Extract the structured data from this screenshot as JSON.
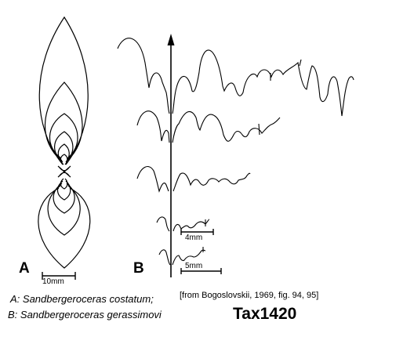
{
  "panel_labels": {
    "a": "A",
    "b": "B"
  },
  "scale_bars": {
    "shell": "10mm",
    "suture_upper": "4mm",
    "suture_lower": "5mm"
  },
  "captions": {
    "a": "A: Sandbergeroceras costatum;",
    "b": "B: Sandbergeroceras gerassimovi"
  },
  "source": "[from Bogoslovskii, 1969, fig. 94, 95]",
  "taxon_id": "Tax1420"
}
